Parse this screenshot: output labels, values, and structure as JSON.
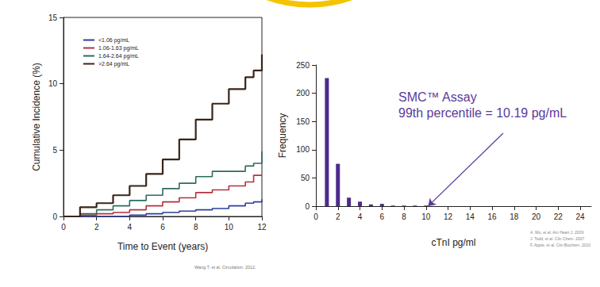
{
  "chart_data": [
    {
      "type": "line",
      "line_style": "step",
      "xlabel": "Time to Event (years)",
      "ylabel": "Cumulative Incidence (%)",
      "source": "Wang T, et al. Circulation. 2012.",
      "x": [
        0,
        1,
        2,
        3,
        4,
        5,
        6,
        7,
        8,
        9,
        10,
        11,
        11.5,
        12
      ],
      "series": [
        {
          "name": "<1.06 pg/mL",
          "color": "#2b3f9e",
          "values": [
            0,
            0,
            0,
            0,
            0.1,
            0.2,
            0.3,
            0.4,
            0.5,
            0.6,
            0.8,
            1.0,
            1.1,
            1.3
          ]
        },
        {
          "name": "1.06-1.63 pg/mL",
          "color": "#b5313a",
          "values": [
            0,
            0.1,
            0.2,
            0.3,
            0.5,
            0.8,
            1.1,
            1.4,
            1.8,
            2.0,
            2.3,
            2.6,
            3.1,
            3.1
          ]
        },
        {
          "name": "1.64-2.64 pg/mL",
          "color": "#2e6b5e",
          "values": [
            0,
            0.2,
            0.5,
            0.8,
            1.2,
            1.6,
            2.1,
            2.5,
            3.0,
            3.4,
            3.4,
            3.8,
            4.0,
            4.9
          ]
        },
        {
          "name": ">2.64 pg/mL",
          "color": "#3a2418",
          "values": [
            0,
            0.7,
            1.0,
            1.6,
            2.3,
            3.2,
            4.3,
            5.8,
            7.3,
            8.5,
            9.6,
            10.5,
            11.0,
            12.2
          ]
        }
      ],
      "xlim": [
        0,
        12
      ],
      "xticks": [
        0,
        2,
        4,
        6,
        8,
        10,
        12
      ],
      "ylim": [
        0,
        15
      ],
      "yticks": [
        0,
        5,
        10,
        15
      ],
      "legend": "upper left",
      "grid": false
    },
    {
      "type": "bar",
      "xlabel": "cTnI pg/ml",
      "ylabel": "Frequency",
      "x": [
        1,
        2,
        3,
        4,
        5,
        6,
        7,
        8,
        9,
        10
      ],
      "values": [
        227,
        75,
        15,
        8,
        3,
        4,
        1,
        1,
        1,
        1
      ],
      "color": "#4b2a8c",
      "xlim": [
        0,
        25
      ],
      "xticks": [
        0,
        2,
        4,
        6,
        8,
        10,
        12,
        14,
        16,
        18,
        20,
        22,
        24
      ],
      "ylim": [
        0,
        250
      ],
      "yticks": [
        0,
        50,
        100,
        150,
        200,
        250
      ],
      "annotation": {
        "text": [
          "SMC™ Assay",
          "99th percentile = 10.19 pg/mL"
        ],
        "x": 10.19,
        "y": 0
      },
      "sources": [
        "A. Wu, et al. Am Heart J. 2009",
        "J. Todd, et al. Clin Chem. 2007",
        "F. Apple, et al. Clin Biochem. 2010"
      ],
      "grid": false
    }
  ]
}
